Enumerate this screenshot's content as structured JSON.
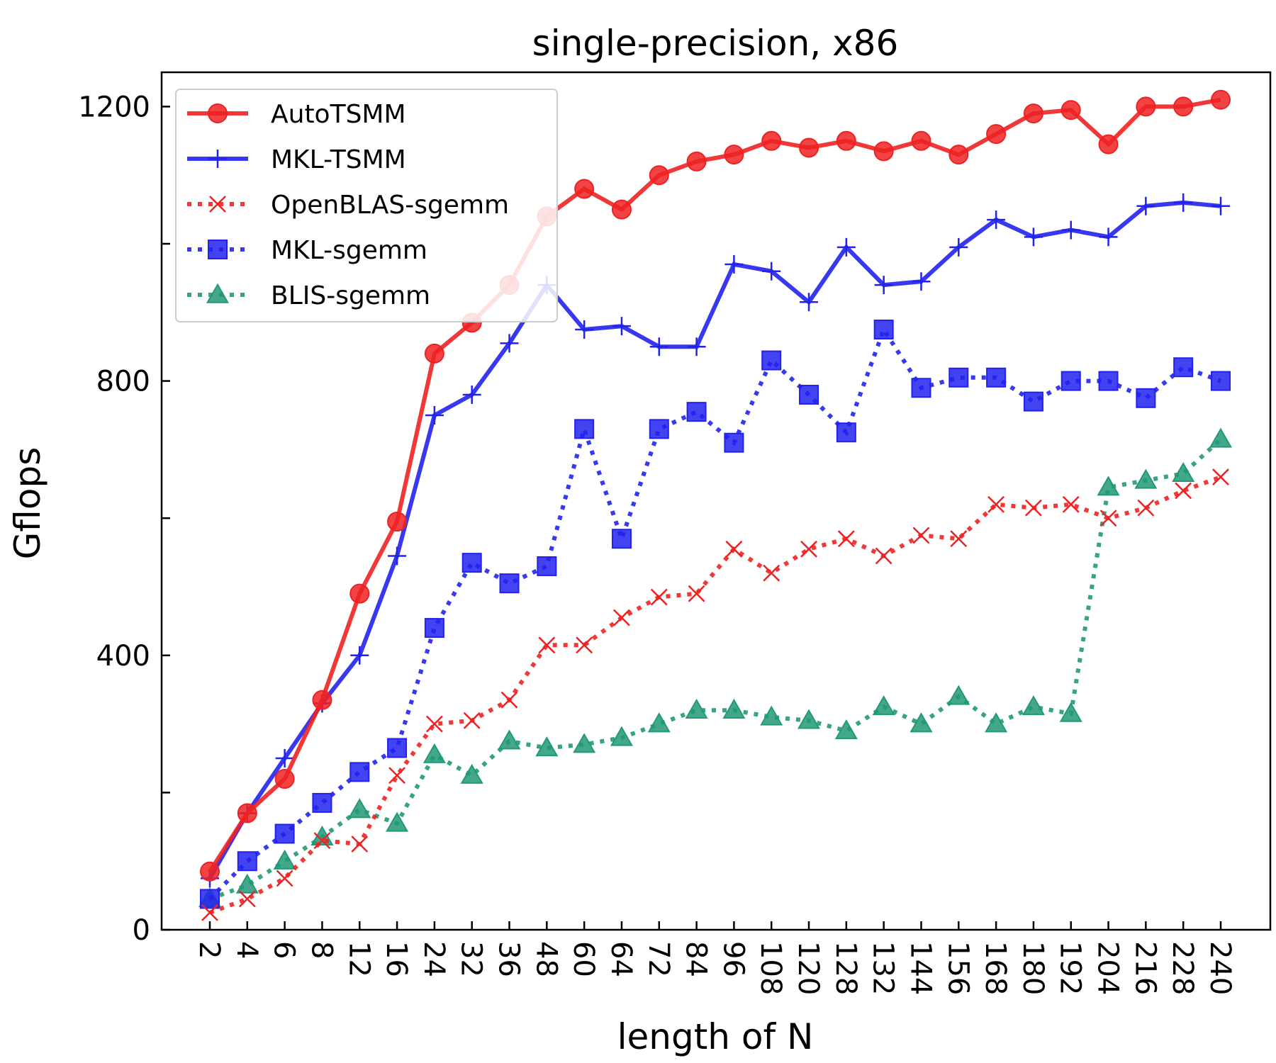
{
  "chart_data": {
    "type": "line",
    "title": "single-precision, x86",
    "xlabel": "length of N",
    "ylabel": "Gflops",
    "ylim": [
      0,
      1250
    ],
    "yticks": [
      0,
      200,
      400,
      600,
      800,
      1000,
      1200
    ],
    "ytick_labels": [
      "0",
      "",
      "400",
      "",
      "800",
      "",
      "1200"
    ],
    "categories": [
      "2",
      "4",
      "6",
      "8",
      "12",
      "16",
      "24",
      "32",
      "36",
      "48",
      "60",
      "64",
      "72",
      "84",
      "96",
      "108",
      "120",
      "128",
      "132",
      "144",
      "156",
      "168",
      "180",
      "192",
      "204",
      "216",
      "228",
      "240"
    ],
    "legend_position": "top-left",
    "series": [
      {
        "name": "AutoTSMM",
        "color": "#ee2222",
        "style": "solid",
        "marker": "circle",
        "values": [
          85,
          170,
          220,
          335,
          490,
          595,
          840,
          885,
          940,
          1040,
          1080,
          1050,
          1100,
          1120,
          1130,
          1150,
          1140,
          1150,
          1135,
          1150,
          1130,
          1160,
          1190,
          1195,
          1145,
          1200,
          1200,
          1210
        ]
      },
      {
        "name": "MKL-TSMM",
        "color": "#2222ee",
        "style": "solid",
        "marker": "plus",
        "values": [
          75,
          170,
          250,
          330,
          400,
          545,
          750,
          780,
          855,
          940,
          875,
          880,
          850,
          850,
          970,
          960,
          915,
          995,
          940,
          945,
          995,
          1035,
          1010,
          1020,
          1010,
          1055,
          1060,
          1055
        ]
      },
      {
        "name": "OpenBLAS-sgemm",
        "color": "#ee2222",
        "style": "dotted",
        "marker": "x",
        "values": [
          25,
          45,
          75,
          130,
          125,
          225,
          300,
          305,
          335,
          415,
          415,
          455,
          485,
          490,
          555,
          520,
          555,
          570,
          545,
          575,
          570,
          620,
          615,
          620,
          600,
          615,
          640,
          660
        ]
      },
      {
        "name": "MKL-sgemm",
        "color": "#2222ee",
        "style": "dotted",
        "marker": "square",
        "values": [
          45,
          100,
          140,
          185,
          230,
          265,
          440,
          535,
          505,
          530,
          730,
          570,
          730,
          755,
          710,
          830,
          780,
          725,
          875,
          790,
          805,
          805,
          770,
          800,
          800,
          775,
          820,
          800
        ]
      },
      {
        "name": "BLIS-sgemm",
        "color": "#229977",
        "style": "dotted",
        "marker": "triangle",
        "values": [
          45,
          65,
          100,
          135,
          175,
          155,
          255,
          225,
          275,
          265,
          270,
          280,
          300,
          320,
          320,
          310,
          305,
          290,
          325,
          300,
          340,
          300,
          325,
          315,
          645,
          655,
          665,
          715
        ]
      }
    ]
  }
}
